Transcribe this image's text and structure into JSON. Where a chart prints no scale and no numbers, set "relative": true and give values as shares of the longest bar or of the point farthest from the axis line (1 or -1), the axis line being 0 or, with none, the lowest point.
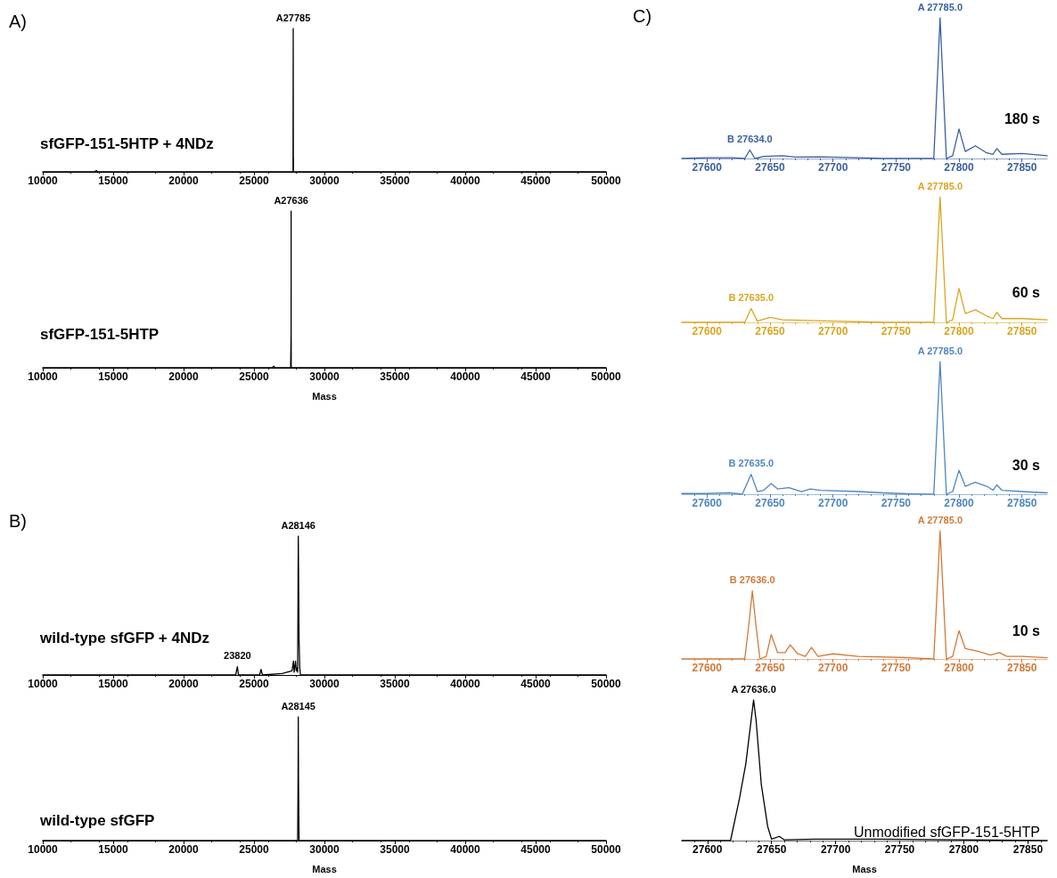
{
  "chart_data": [
    {
      "type": "line",
      "title": "sfGFP-151-5HTP + 4NDz",
      "relative": true,
      "xlim": [
        10000,
        50000
      ],
      "xticks": [
        10000,
        15000,
        20000,
        25000,
        30000,
        35000,
        40000,
        45000,
        50000
      ],
      "annotations": [
        "A)",
        {
          "text": "A27785",
          "x": 27785,
          "y": 1
        }
      ],
      "series": [
        {
          "color": "#000000",
          "x": [
            10000,
            13700,
            13800,
            13900,
            27700,
            27770,
            27785,
            27795,
            27800,
            27805,
            27900,
            50000
          ],
          "values": [
            0,
            0,
            0.01,
            0,
            0,
            0,
            1,
            0.02,
            0.1,
            0,
            0,
            0
          ]
        }
      ]
    },
    {
      "type": "line",
      "title": "sfGFP-151-5HTP",
      "xlabel": "Mass",
      "relative": true,
      "xlim": [
        10000,
        50000
      ],
      "xticks": [
        10000,
        15000,
        20000,
        25000,
        30000,
        35000,
        40000,
        45000,
        50000
      ],
      "annotations": [
        {
          "text": "A27636",
          "x": 27636,
          "y": 1
        }
      ],
      "series": [
        {
          "color": "#000000",
          "x": [
            10000,
            26300,
            26400,
            26500,
            27600,
            27630,
            27633,
            27636,
            27639,
            27645,
            50000
          ],
          "values": [
            0,
            0,
            0.01,
            0,
            0,
            0,
            0.22,
            1,
            0.22,
            0,
            0
          ]
        }
      ]
    },
    {
      "type": "line",
      "title": "wild-type sfGFP + 4NDz",
      "relative": true,
      "xlim": [
        10000,
        50000
      ],
      "xticks": [
        10000,
        15000,
        20000,
        25000,
        30000,
        35000,
        40000,
        45000,
        50000
      ],
      "annotations": [
        "B)",
        {
          "text": "A28146",
          "x": 28146,
          "y": 1
        },
        {
          "text": "23820",
          "x": 23820,
          "y": 0.06
        }
      ],
      "series": [
        {
          "color": "#000000",
          "x": [
            10000,
            22000,
            23700,
            23820,
            23900,
            25400,
            25500,
            25600,
            27000,
            27700,
            27800,
            27850,
            27950,
            28000,
            28050,
            28100,
            28146,
            28200,
            28250,
            28300,
            50000
          ],
          "values": [
            0,
            0,
            0,
            0.06,
            0,
            0,
            0.04,
            0,
            0.01,
            0.03,
            0.1,
            0.02,
            0.1,
            0.03,
            0.05,
            0.02,
            1,
            0.25,
            0.05,
            0,
            0
          ]
        }
      ]
    },
    {
      "type": "line",
      "title": "wild-type sfGFP",
      "xlabel": "Mass",
      "relative": true,
      "xlim": [
        10000,
        50000
      ],
      "xticks": [
        10000,
        15000,
        20000,
        25000,
        30000,
        35000,
        40000,
        45000,
        50000
      ],
      "annotations": [
        {
          "text": "A28145",
          "x": 28145,
          "y": 1
        }
      ],
      "series": [
        {
          "color": "#000000",
          "x": [
            10000,
            28100,
            28130,
            28145,
            28160,
            28200,
            50000
          ],
          "values": [
            0,
            0,
            0.5,
            1,
            0.5,
            0,
            0
          ]
        }
      ]
    },
    {
      "type": "line",
      "title": "180 s",
      "relative": true,
      "xlim": [
        27580,
        27870
      ],
      "xticks": [
        27600,
        27650,
        27700,
        27750,
        27800,
        27850
      ],
      "annotations": [
        "C)",
        {
          "text": "A 27785.0",
          "x": 27785,
          "y": 1
        },
        {
          "text": "B 27634.0",
          "x": 27634,
          "y": 0.06
        }
      ],
      "series": [
        {
          "color": "#3a5fa0",
          "x": [
            27580,
            27600,
            27620,
            27630,
            27634,
            27638,
            27645,
            27660,
            27670,
            27690,
            27720,
            27740,
            27770,
            27780,
            27783,
            27785,
            27787,
            27790,
            27795,
            27800,
            27805,
            27813,
            27822,
            27827,
            27830,
            27834,
            27850,
            27870
          ],
          "values": [
            0,
            0.005,
            0.005,
            0,
            0.06,
            0,
            0.015,
            0.02,
            0.01,
            0.012,
            0.005,
            0,
            0,
            0,
            0.6,
            1,
            0.6,
            0,
            0.02,
            0.21,
            0.05,
            0.09,
            0.04,
            0.03,
            0.07,
            0.03,
            0.035,
            0.02
          ]
        }
      ]
    },
    {
      "type": "line",
      "title": "60 s",
      "relative": true,
      "xlim": [
        27580,
        27870
      ],
      "xticks": [
        27600,
        27650,
        27700,
        27750,
        27800,
        27850
      ],
      "annotations": [
        {
          "text": "A 27785.0",
          "x": 27785,
          "y": 1
        },
        {
          "text": "B 27635.0",
          "x": 27635,
          "y": 0.11
        }
      ],
      "series": [
        {
          "color": "#d9a520",
          "x": [
            27580,
            27630,
            27635,
            27640,
            27650,
            27660,
            27680,
            27700,
            27740,
            27760,
            27780,
            27783,
            27785,
            27787,
            27790,
            27795,
            27800,
            27805,
            27813,
            27822,
            27827,
            27830,
            27834,
            27850,
            27870
          ],
          "values": [
            0,
            0,
            0.11,
            0.01,
            0.04,
            0.02,
            0.015,
            0.01,
            0,
            0,
            0,
            0.6,
            1,
            0.6,
            0,
            0.02,
            0.27,
            0.07,
            0.1,
            0.05,
            0.03,
            0.08,
            0.03,
            0.03,
            0.02
          ]
        }
      ]
    },
    {
      "type": "line",
      "title": "30 s",
      "relative": true,
      "xlim": [
        27580,
        27870
      ],
      "xticks": [
        27600,
        27650,
        27700,
        27750,
        27800,
        27850
      ],
      "annotations": [
        {
          "text": "A 27785.0",
          "x": 27785,
          "y": 1
        },
        {
          "text": "B 27635.0",
          "x": 27635,
          "y": 0.15
        }
      ],
      "series": [
        {
          "color": "#4f86c0",
          "x": [
            27580,
            27600,
            27618,
            27628,
            27635,
            27640,
            27645,
            27651,
            27656,
            27665,
            27675,
            27682,
            27690,
            27720,
            27740,
            27760,
            27780,
            27783,
            27785,
            27787,
            27790,
            27795,
            27800,
            27805,
            27813,
            27822,
            27827,
            27830,
            27834,
            27850,
            27870
          ],
          "values": [
            0.005,
            0.005,
            0.01,
            0,
            0.15,
            0.02,
            0.03,
            0.08,
            0.04,
            0.05,
            0.02,
            0.04,
            0.03,
            0.02,
            0.01,
            0.003,
            0,
            0.6,
            1,
            0.6,
            0,
            0.02,
            0.18,
            0.06,
            0.09,
            0.06,
            0.03,
            0.07,
            0.03,
            0.02,
            0.01
          ]
        }
      ]
    },
    {
      "type": "line",
      "title": "10 s",
      "relative": true,
      "xlim": [
        27580,
        27870
      ],
      "xticks": [
        27600,
        27650,
        27700,
        27750,
        27800,
        27850
      ],
      "annotations": [
        {
          "text": "A 27785.0",
          "x": 27785,
          "y": 1
        },
        {
          "text": "B 27636.0",
          "x": 27636,
          "y": 0.53
        }
      ],
      "series": [
        {
          "color": "#d07a3a",
          "x": [
            27580,
            27630,
            27633,
            27636,
            27639,
            27642,
            27647,
            27651,
            27656,
            27662,
            27666,
            27672,
            27678,
            27683,
            27688,
            27700,
            27720,
            27760,
            27780,
            27783,
            27785,
            27787,
            27790,
            27795,
            27800,
            27805,
            27815,
            27825,
            27832,
            27838,
            27850,
            27870
          ],
          "values": [
            0,
            0,
            0.25,
            0.53,
            0.25,
            0,
            0.02,
            0.19,
            0.05,
            0.05,
            0.11,
            0.04,
            0.02,
            0.09,
            0.02,
            0.04,
            0.02,
            0.01,
            0,
            0.6,
            1,
            0.6,
            0,
            0.02,
            0.22,
            0.08,
            0.06,
            0.03,
            0.05,
            0.02,
            0.02,
            0.01
          ]
        }
      ]
    },
    {
      "type": "line",
      "title": "Unmodified sfGFP-151-5HTP",
      "xlabel": "Mass",
      "relative": true,
      "xlim": [
        27580,
        27865
      ],
      "xticks": [
        27600,
        27650,
        27700,
        27750,
        27800,
        27850
      ],
      "annotations": [
        {
          "text": "A 27636.0",
          "x": 27636,
          "y": 1
        }
      ],
      "series": [
        {
          "color": "#000000",
          "x": [
            27580,
            27618,
            27625,
            27630,
            27634,
            27636,
            27638,
            27642,
            27647,
            27650,
            27656,
            27660,
            27684,
            27735,
            27865
          ],
          "values": [
            0,
            0,
            0.3,
            0.55,
            0.85,
            1,
            0.85,
            0.4,
            0.1,
            0.01,
            0.03,
            0.005,
            0.01,
            0.01,
            0
          ]
        }
      ]
    }
  ]
}
